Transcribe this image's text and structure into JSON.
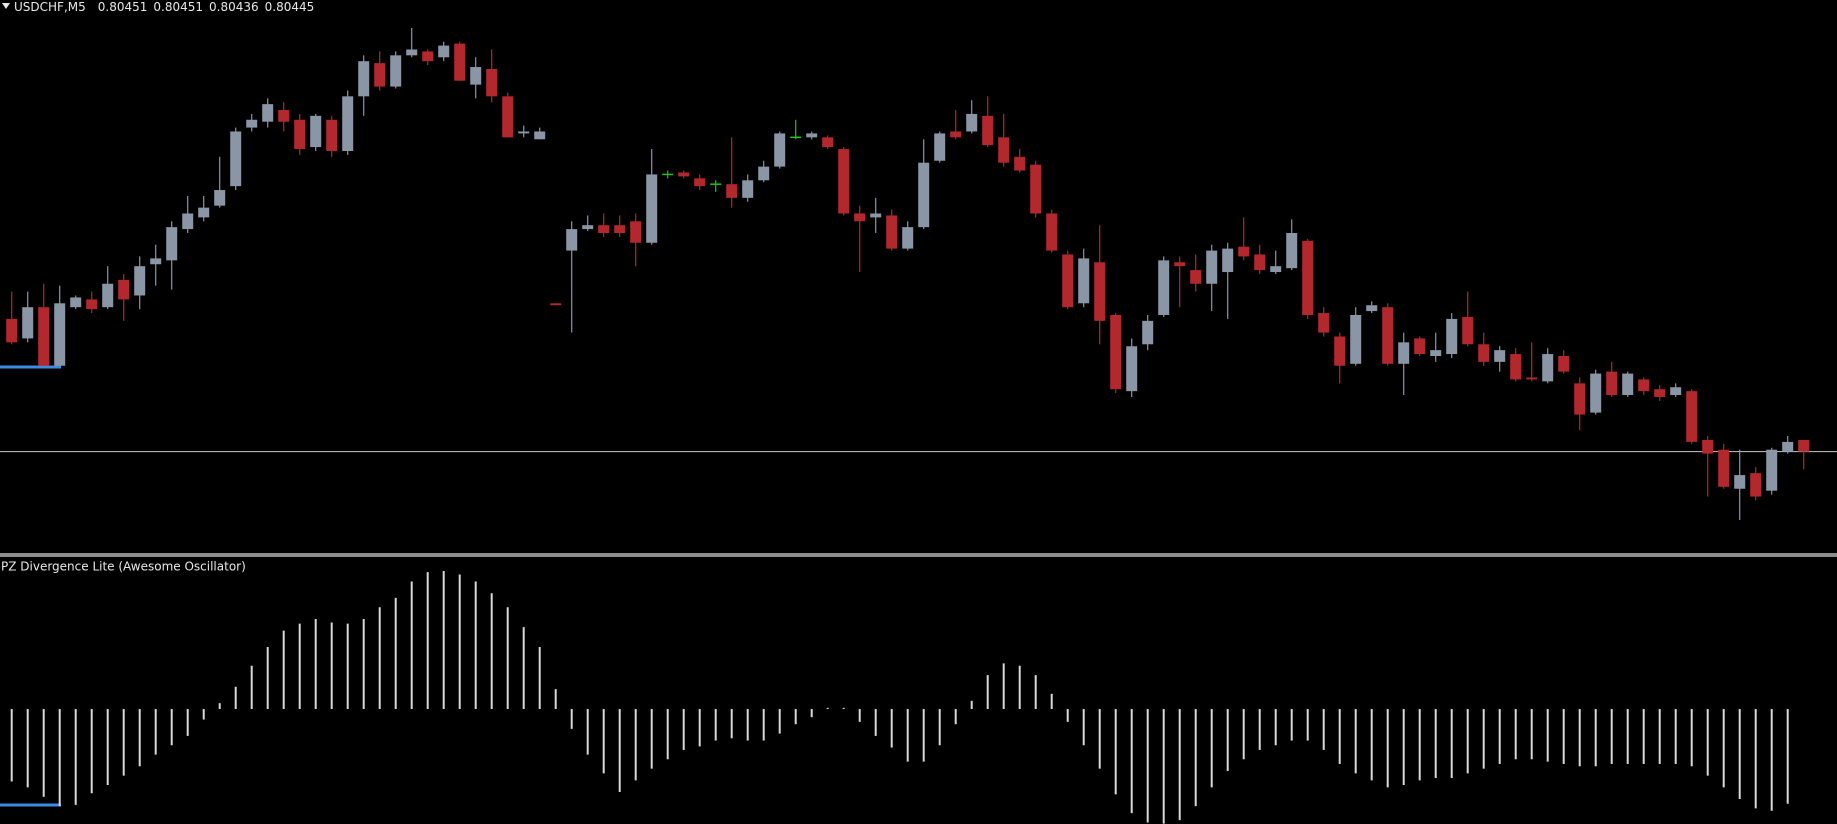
{
  "chart_data": [
    {
      "type": "candlestick",
      "title": "USDCHF,M5",
      "up_color": "#8a95a5",
      "down_color": "#b3282d",
      "doji_color": "#1fc41f",
      "open": [
        0.80513,
        0.80503,
        0.80519,
        0.80489,
        0.80519,
        0.80523,
        0.80519,
        0.80533,
        0.80525,
        0.80541,
        0.80543,
        0.80559,
        0.80565,
        0.80571,
        0.80581,
        0.80611,
        0.80614,
        0.8062,
        0.80615,
        0.80601,
        0.80615,
        0.80599,
        0.80627,
        0.80644,
        0.80632,
        0.80648,
        0.8065,
        0.80647,
        0.80654,
        0.80633,
        0.80641,
        0.80627,
        0.80608,
        0.80605,
        0.80521,
        0.80548,
        0.80559,
        0.80561,
        0.80561,
        0.80563,
        0.80552,
        0.80587,
        0.80588,
        0.80585,
        0.80582,
        0.80582,
        0.80575,
        0.80584,
        0.80591,
        0.80606,
        0.80606,
        0.80606,
        0.806,
        0.80567,
        0.80565,
        0.80566,
        0.80549,
        0.8056,
        0.80594,
        0.80609,
        0.80609,
        0.80617,
        0.80606,
        0.80596,
        0.80592,
        0.80567,
        0.80546,
        0.80521,
        0.80542,
        0.80515,
        0.80476,
        0.805,
        0.80515,
        0.80542,
        0.80538,
        0.80531,
        0.80537,
        0.8055,
        0.80546,
        0.80537,
        0.80539,
        0.80553,
        0.80516,
        0.80504,
        0.8049,
        0.80517,
        0.80519,
        0.8049,
        0.80503,
        0.80494,
        0.80495,
        0.80514,
        0.805,
        0.80491,
        0.80495,
        0.80483,
        0.80481,
        0.80494,
        0.8048,
        0.80465,
        0.80486,
        0.80474,
        0.80482,
        0.80477,
        0.80474,
        0.80476,
        0.80451,
        0.80446,
        0.80426,
        0.80434,
        0.80425,
        0.80445,
        0.80451
      ],
      "high": [
        0.80527,
        0.80527,
        0.80531,
        0.8053,
        0.80525,
        0.80527,
        0.8054,
        0.80536,
        0.80545,
        0.80551,
        0.80563,
        0.80576,
        0.80576,
        0.80596,
        0.80611,
        0.80618,
        0.80626,
        0.80624,
        0.80618,
        0.80618,
        0.80617,
        0.8063,
        0.80648,
        0.8065,
        0.8065,
        0.80662,
        0.80651,
        0.80655,
        0.80655,
        0.80647,
        0.80651,
        0.80629,
        0.80612,
        0.80611,
        0.80521,
        0.80563,
        0.80566,
        0.80567,
        0.80566,
        0.80567,
        0.806,
        0.80589,
        0.80589,
        0.80587,
        0.80584,
        0.80606,
        0.80587,
        0.80594,
        0.80609,
        0.80615,
        0.80609,
        0.80607,
        0.80601,
        0.80571,
        0.80575,
        0.80569,
        0.80563,
        0.80605,
        0.80609,
        0.8062,
        0.80625,
        0.80627,
        0.80618,
        0.806,
        0.80594,
        0.80569,
        0.80548,
        0.80549,
        0.80561,
        0.80516,
        0.80503,
        0.80515,
        0.80545,
        0.80545,
        0.80546,
        0.80551,
        0.80552,
        0.80565,
        0.80551,
        0.80548,
        0.80564,
        0.80554,
        0.80519,
        0.80506,
        0.80519,
        0.80522,
        0.80521,
        0.80506,
        0.80504,
        0.80506,
        0.80516,
        0.80527,
        0.80506,
        0.80499,
        0.80498,
        0.80501,
        0.80498,
        0.80497,
        0.80483,
        0.80487,
        0.80491,
        0.80486,
        0.80483,
        0.80479,
        0.8048,
        0.80477,
        0.80453,
        0.80449,
        0.80446,
        0.80437,
        0.80447,
        0.80453,
        0.80451
      ],
      "low": [
        0.805,
        0.80501,
        0.80489,
        0.80489,
        0.80518,
        0.80516,
        0.80518,
        0.80512,
        0.80518,
        0.8053,
        0.80528,
        0.80557,
        0.80563,
        0.8057,
        0.80579,
        0.80609,
        0.80611,
        0.80609,
        0.80597,
        0.80599,
        0.80596,
        0.80597,
        0.80617,
        0.8063,
        0.80631,
        0.80647,
        0.80643,
        0.80645,
        0.80635,
        0.80626,
        0.80624,
        0.80606,
        0.80606,
        0.80605,
        0.8052,
        0.80506,
        0.80558,
        0.80555,
        0.80555,
        0.8054,
        0.80551,
        0.80585,
        0.80585,
        0.80579,
        0.80578,
        0.8057,
        0.80573,
        0.80583,
        0.8059,
        0.80605,
        0.80605,
        0.806,
        0.80566,
        0.80537,
        0.80557,
        0.80548,
        0.80548,
        0.80559,
        0.80593,
        0.80605,
        0.80608,
        0.80601,
        0.80591,
        0.80588,
        0.80565,
        0.80547,
        0.80518,
        0.80519,
        0.805,
        0.80475,
        0.80473,
        0.80497,
        0.80514,
        0.80519,
        0.80527,
        0.80517,
        0.80513,
        0.80543,
        0.80536,
        0.80536,
        0.80538,
        0.80513,
        0.80504,
        0.8048,
        0.80489,
        0.80516,
        0.80489,
        0.80474,
        0.80494,
        0.80491,
        0.80493,
        0.80499,
        0.80489,
        0.80486,
        0.80481,
        0.80481,
        0.8048,
        0.80485,
        0.80456,
        0.80464,
        0.80473,
        0.80473,
        0.80474,
        0.80471,
        0.80473,
        0.80449,
        0.80422,
        0.80426,
        0.8041,
        0.8042,
        0.80423,
        0.80444,
        0.80436
      ],
      "close": [
        0.80501,
        0.80519,
        0.80489,
        0.80521,
        0.80524,
        0.80518,
        0.80531,
        0.80523,
        0.8054,
        0.80544,
        0.8056,
        0.80567,
        0.8057,
        0.80579,
        0.80609,
        0.80615,
        0.80623,
        0.80614,
        0.806,
        0.80617,
        0.80599,
        0.80627,
        0.80645,
        0.80632,
        0.80648,
        0.80651,
        0.80645,
        0.80653,
        0.80635,
        0.80642,
        0.80627,
        0.80606,
        0.80609,
        0.80609,
        0.8052,
        0.80559,
        0.80561,
        0.80557,
        0.80557,
        0.80552,
        0.80587,
        0.80587,
        0.80586,
        0.80581,
        0.80582,
        0.80575,
        0.80584,
        0.80591,
        0.80608,
        0.80606,
        0.80608,
        0.80601,
        0.80567,
        0.80563,
        0.80567,
        0.80549,
        0.8056,
        0.80593,
        0.80608,
        0.80606,
        0.80618,
        0.80602,
        0.80593,
        0.80589,
        0.80567,
        0.80548,
        0.80519,
        0.80544,
        0.80512,
        0.80477,
        0.80499,
        0.80512,
        0.80543,
        0.8054,
        0.80531,
        0.80548,
        0.80549,
        0.80545,
        0.80538,
        0.8054,
        0.80557,
        0.80515,
        0.80506,
        0.80489,
        0.80515,
        0.8052,
        0.8049,
        0.80501,
        0.80495,
        0.80497,
        0.80513,
        0.805,
        0.80491,
        0.80497,
        0.80482,
        0.80482,
        0.80495,
        0.80486,
        0.80464,
        0.80485,
        0.80474,
        0.80485,
        0.80476,
        0.80473,
        0.80478,
        0.8045,
        0.80444,
        0.80427,
        0.80433,
        0.80422,
        0.80446,
        0.8045,
        0.80445
      ]
    },
    {
      "type": "bar",
      "title": "PZ Divergence Lite (Awesome Oscillator)",
      "color": "#d9d9d9",
      "values": [
        -0.00062,
        -0.00067,
        -0.00075,
        -0.00083,
        -0.00082,
        -0.00072,
        -0.00065,
        -0.00057,
        -0.00049,
        -0.00039,
        -0.00031,
        -0.00023,
        -9e-05,
        5e-05,
        0.00019,
        0.00037,
        0.00053,
        0.00067,
        0.00073,
        0.00077,
        0.00074,
        0.00073,
        0.00077,
        0.00087,
        0.00095,
        0.00109,
        0.00117,
        0.00118,
        0.00115,
        0.00109,
        0.00099,
        0.00087,
        0.0007,
        0.00053,
        0.00017,
        -0.00017,
        -0.00039,
        -0.00055,
        -0.00071,
        -0.00061,
        -0.00051,
        -0.00043,
        -0.00035,
        -0.00032,
        -0.00027,
        -0.00025,
        -0.00027,
        -0.00027,
        -0.00021,
        -0.00013,
        -7e-05,
        1e-05,
        1e-05,
        -0.00011,
        -0.00023,
        -0.00033,
        -0.00045,
        -0.00045,
        -0.00031,
        -0.00013,
        7e-05,
        0.00029,
        0.00039,
        0.00037,
        0.00029,
        0.00013,
        -0.00011,
        -0.00031,
        -0.00051,
        -0.00073,
        -0.00089,
        -0.00097,
        -0.00098,
        -0.00095,
        -0.00083,
        -0.00067,
        -0.00053,
        -0.00043,
        -0.00035,
        -0.00031,
        -0.00027,
        -0.00027,
        -0.00035,
        -0.00047,
        -0.00055,
        -0.00061,
        -0.00067,
        -0.00065,
        -0.00061,
        -0.00059,
        -0.00059,
        -0.00055,
        -0.00051,
        -0.00047,
        -0.00043,
        -0.00043,
        -0.00045,
        -0.00047,
        -0.00049,
        -0.00049,
        -0.00047,
        -0.00047,
        -0.00047,
        -0.00047,
        -0.00047,
        -0.00049,
        -0.00057,
        -0.00067,
        -0.00077,
        -0.00085,
        -0.00087,
        -0.00081,
        null
      ]
    }
  ]
}
